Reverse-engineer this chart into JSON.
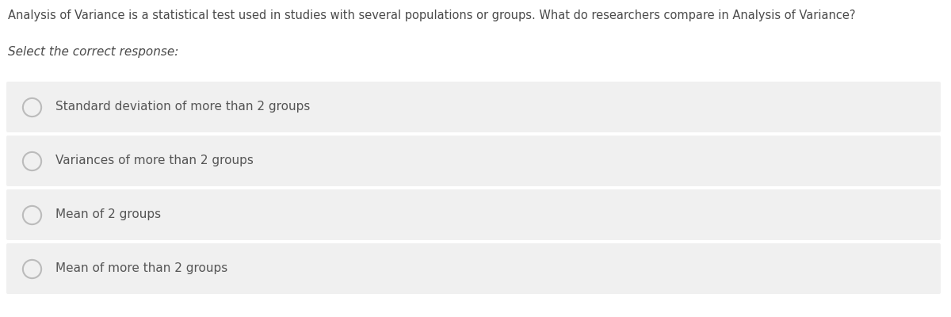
{
  "question": "Analysis of Variance is a statistical test used in studies with several populations or groups. What do researchers compare in Analysis of Variance?",
  "prompt": "Select the correct response:",
  "options": [
    "Standard deviation of more than 2 groups",
    "Variances of more than 2 groups",
    "Mean of 2 groups",
    "Mean of more than 2 groups"
  ],
  "bg_color": "#ffffff",
  "option_box_color": "#f0f0f0",
  "question_text_color": "#4a4a4a",
  "prompt_text_color": "#4a4a4a",
  "option_text_color": "#555555",
  "radio_fill": "#f0f0f0",
  "radio_edge": "#bbbbbb",
  "question_fontsize": 10.5,
  "prompt_fontsize": 11,
  "option_fontsize": 11,
  "fig_width": 12.0,
  "fig_height": 4.0,
  "dpi": 100
}
